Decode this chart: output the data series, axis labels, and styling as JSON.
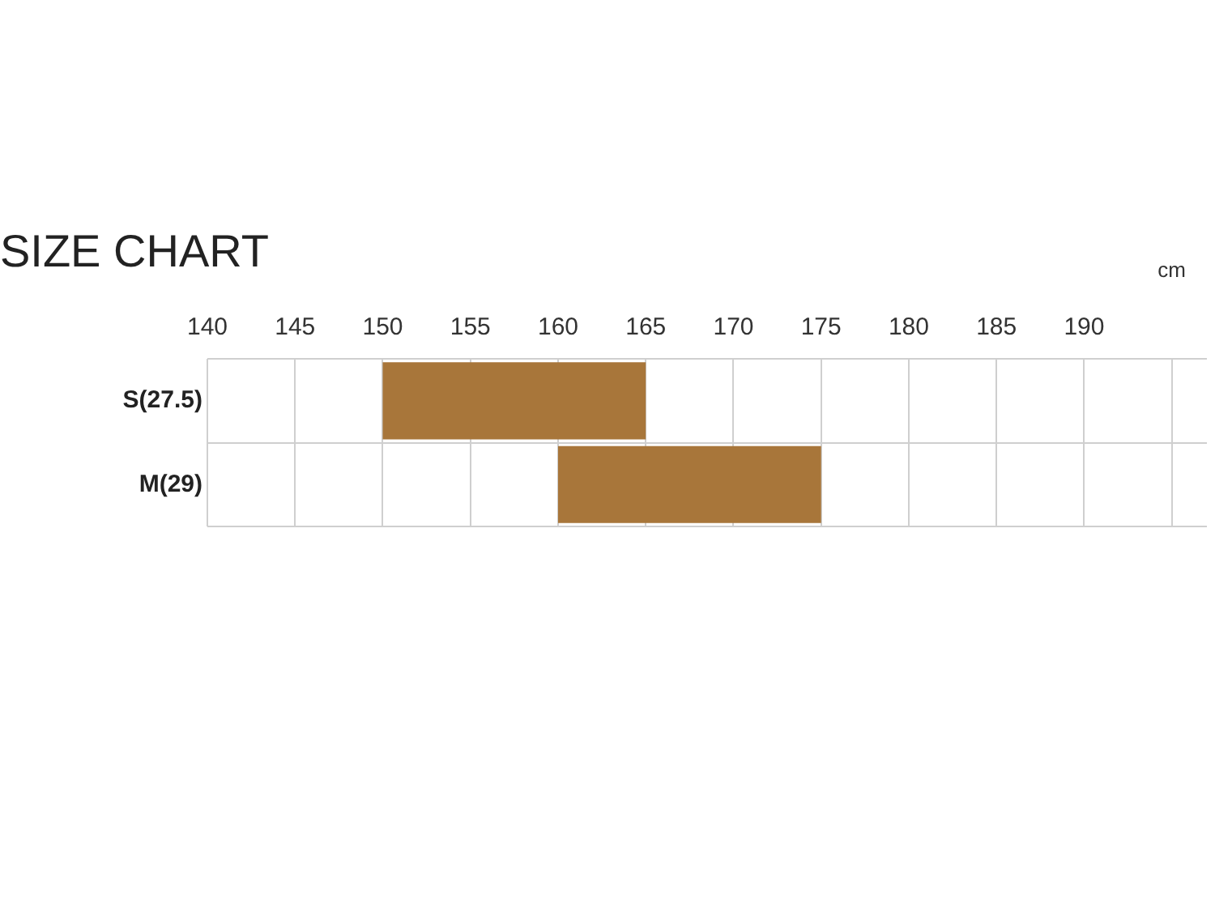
{
  "chart_data": {
    "type": "bar",
    "title": "SIZE CHART",
    "xlabel": "cm",
    "orientation": "horizontal",
    "categories": [
      "S(27.5)",
      "M(29)"
    ],
    "values": [
      15,
      15
    ],
    "base": [
      150,
      160
    ],
    "color": "#a8763a",
    "xlim": [
      140,
      197
    ],
    "xticks": [
      140,
      145,
      150,
      155,
      160,
      165,
      170,
      175,
      180,
      185,
      190,
      {
        "value": 195,
        "label": null
      }
    ],
    "grid": true,
    "legend": false
  }
}
